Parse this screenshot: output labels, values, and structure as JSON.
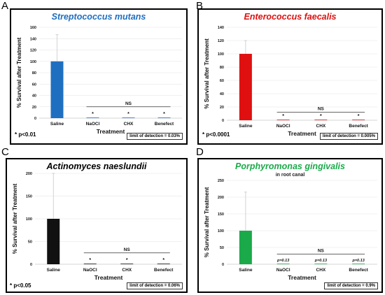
{
  "panel_labels": [
    "A",
    "B",
    "C",
    "D"
  ],
  "panels": [
    {
      "title": "Streptococcus mutans",
      "subtitle": "",
      "title_color": "#1f6fc1",
      "pvalue": "* p<0.01",
      "lod": "limit of detection = 0.03%"
    },
    {
      "title": "Enterococcus faecalis",
      "subtitle": "",
      "title_color": "#e01010",
      "pvalue": "* p<0.0001",
      "lod": "limit of detection = 0.005%"
    },
    {
      "title": "Actinomyces naeslundii",
      "subtitle": "",
      "title_color": "#000000",
      "pvalue": "* p<0.05",
      "lod": "limit of detection = 0.06%"
    },
    {
      "title": "Porphyromonas gingivalis",
      "subtitle": "in root canal",
      "title_color": "#1aaa4a",
      "pvalue": "",
      "lod": "limit of detection = 0.9%"
    }
  ],
  "chart_data": [
    {
      "type": "bar",
      "categories": [
        "Saline",
        "NaOCl",
        "CHX",
        "Benefect"
      ],
      "values": [
        100,
        0.5,
        0.5,
        0.5
      ],
      "error": [
        47,
        0,
        0,
        0
      ],
      "ylabel": "% Survival after Treatment",
      "xlabel": "Treatment",
      "ylim": [
        0,
        160
      ],
      "yticks": [
        0,
        20,
        40,
        60,
        80,
        100,
        120,
        140,
        160
      ],
      "bar_color": "#1f6fc1",
      "markers": [
        "",
        "*",
        "*",
        "*"
      ],
      "ns_label": "NS",
      "ns_level": 20
    },
    {
      "type": "bar",
      "categories": [
        "Saline",
        "NaOCl",
        "CHX",
        "Benefect"
      ],
      "values": [
        100,
        0.2,
        0.2,
        0.5
      ],
      "error": [
        20,
        0,
        0,
        0
      ],
      "ylabel": "% Survival after Treatment",
      "xlabel": "Treatment",
      "ylim": [
        0,
        140
      ],
      "yticks": [
        0,
        20,
        40,
        60,
        80,
        100,
        120,
        140
      ],
      "bar_color": "#e01010",
      "markers": [
        "",
        "*",
        "*",
        "*"
      ],
      "ns_label": "NS",
      "ns_level": 12
    },
    {
      "type": "bar",
      "categories": [
        "Saline",
        "NaOCl",
        "CHX",
        "Benefect"
      ],
      "values": [
        100,
        0.5,
        0.5,
        0.5
      ],
      "error": [
        100,
        0,
        0,
        0
      ],
      "ylabel": "% Survival after Treatment",
      "xlabel": "Treatment",
      "ylim": [
        0,
        200
      ],
      "yticks": [
        0,
        50,
        100,
        150,
        200
      ],
      "bar_color": "#111111",
      "markers": [
        "",
        "*",
        "*",
        "*"
      ],
      "ns_label": "NS",
      "ns_level": 25
    },
    {
      "type": "bar",
      "categories": [
        "Saline",
        "NaOCl",
        "CHX",
        "Benefect"
      ],
      "values": [
        100,
        0.5,
        0.5,
        0.5
      ],
      "error": [
        115,
        0,
        0,
        0
      ],
      "ylabel": "% Survival after Treatment",
      "xlabel": "Treatment",
      "ylim": [
        0,
        250
      ],
      "yticks": [
        0,
        50,
        100,
        150,
        200,
        250
      ],
      "bar_color": "#1aaa4a",
      "markers": [
        "",
        "p=0.13",
        "p=0.13",
        "p=0.13"
      ],
      "ns_label": "NS",
      "ns_level": 30
    }
  ]
}
